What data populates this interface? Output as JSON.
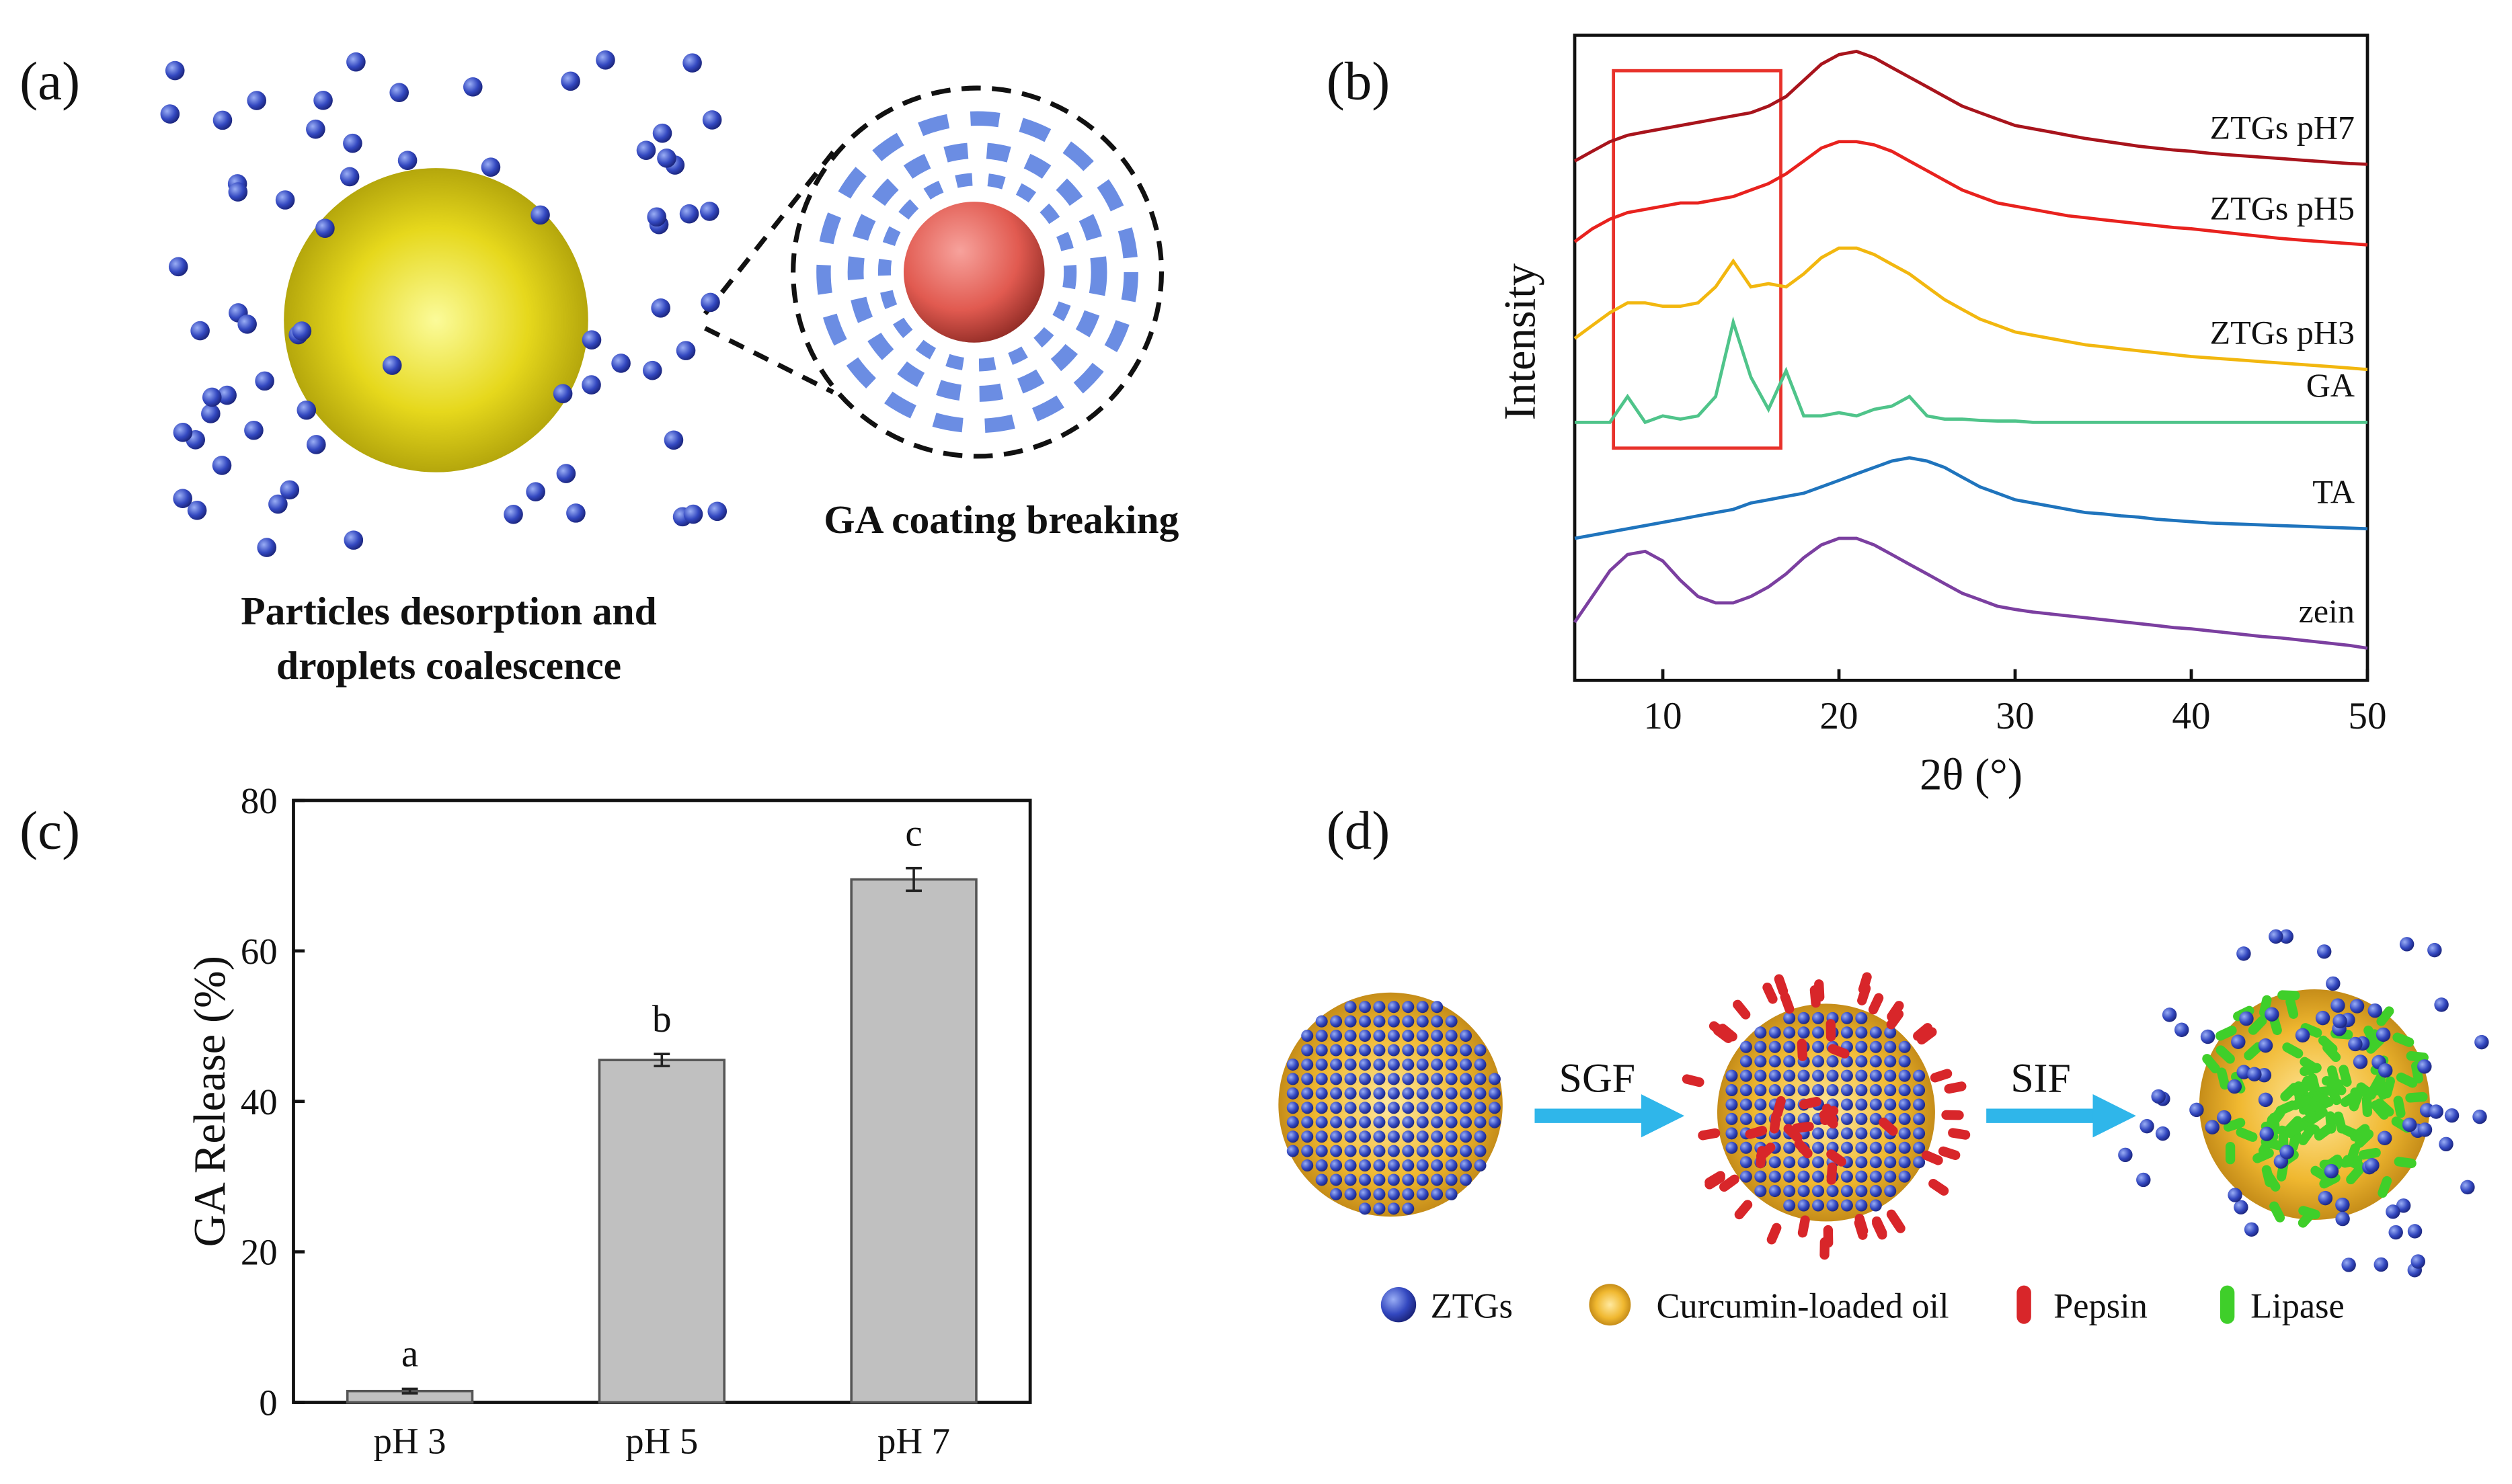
{
  "panel_labels": [
    "(a)",
    "(b)",
    "(c)",
    "(d)"
  ],
  "panel_a": {
    "left_caption": [
      "Particles desorption and",
      "droplets coalescence"
    ],
    "right_caption": "GA coating breaking"
  },
  "panel_d": {
    "steps": [
      "SGF",
      "SIF"
    ],
    "legend": [
      "ZTGs",
      "Curcumin-loaded oil",
      "Pepsin",
      "Lipase"
    ]
  },
  "chart_data": [
    {
      "type": "line",
      "xlabel": "2θ (°)",
      "ylabel": "Intensity",
      "xlim": [
        5,
        50
      ],
      "xticks": [
        10,
        20,
        30,
        40,
        50
      ],
      "ylim": [
        0,
        100
      ],
      "x": [
        5,
        6,
        7,
        8,
        9,
        10,
        11,
        12,
        13,
        14,
        15,
        16,
        17,
        18,
        19,
        20,
        21,
        22,
        23,
        24,
        25,
        26,
        27,
        28,
        29,
        30,
        31,
        32,
        33,
        34,
        35,
        36,
        37,
        38,
        39,
        40,
        41,
        42,
        43,
        44,
        45,
        46,
        47,
        48,
        49,
        50
      ],
      "highlight_box": {
        "x": [
          7.2,
          16.7
        ],
        "y": [
          36,
          94.5
        ],
        "color": "#e8322b"
      },
      "series": [
        {
          "name": "ZTGs pH7",
          "color": "#a8141c",
          "values": [
            80.5,
            82,
            83.5,
            84.5,
            85,
            85.5,
            86,
            86.5,
            87,
            87.5,
            88,
            89,
            90.5,
            93,
            95.5,
            97,
            97.5,
            96.5,
            95,
            93.5,
            92,
            90.5,
            89,
            88,
            87,
            86,
            85.5,
            85,
            84.5,
            84,
            83.6,
            83.2,
            82.8,
            82.5,
            82.2,
            82,
            81.7,
            81.5,
            81.3,
            81.1,
            80.9,
            80.7,
            80.5,
            80.3,
            80.1,
            80
          ]
        },
        {
          "name": "ZTGs pH5",
          "color": "#e8221e",
          "values": [
            68,
            70,
            71.5,
            72.5,
            73,
            73.5,
            74,
            74,
            74.5,
            75,
            76,
            77,
            78.5,
            80.5,
            82.5,
            83.5,
            83.5,
            83,
            82,
            80.5,
            79,
            77.5,
            76,
            75,
            74,
            73.5,
            73,
            72.5,
            72,
            71.7,
            71.4,
            71.1,
            70.8,
            70.5,
            70.2,
            70,
            69.7,
            69.4,
            69.1,
            68.8,
            68.5,
            68.3,
            68.1,
            67.9,
            67.7,
            67.5
          ]
        },
        {
          "name": "ZTGs pH3",
          "color": "#f2b70f",
          "values": [
            53,
            55,
            57,
            58.5,
            58.5,
            58,
            58,
            58.5,
            61,
            65,
            61,
            61.5,
            61,
            63,
            65.5,
            67,
            67,
            66,
            64.5,
            63,
            61,
            59,
            57.5,
            56,
            55,
            54,
            53.5,
            53,
            52.5,
            52,
            51.7,
            51.4,
            51.1,
            50.8,
            50.5,
            50.2,
            50,
            49.8,
            49.6,
            49.4,
            49.2,
            49,
            48.8,
            48.6,
            48.4,
            48.2
          ]
        },
        {
          "name": "GA",
          "color": "#4fc48a",
          "values": [
            40,
            40,
            40,
            44,
            40,
            41,
            40.5,
            41,
            44,
            55.5,
            47,
            42,
            48,
            41,
            41,
            41.5,
            41,
            42,
            42.5,
            44,
            41,
            40.5,
            40.5,
            40.3,
            40.2,
            40.2,
            40,
            40,
            40,
            40,
            40,
            40,
            40,
            40,
            40,
            40,
            40,
            40,
            40,
            40,
            40,
            40,
            40,
            40,
            40,
            40
          ]
        },
        {
          "name": "TA",
          "color": "#1f74bd",
          "values": [
            22,
            22.5,
            23,
            23.5,
            24,
            24.5,
            25,
            25.5,
            26,
            26.5,
            27.5,
            28,
            28.5,
            29,
            30,
            31,
            32,
            33,
            34,
            34.5,
            34,
            33,
            31.5,
            30,
            29,
            28,
            27.5,
            27,
            26.5,
            26,
            25.8,
            25.5,
            25.3,
            25,
            24.8,
            24.6,
            24.4,
            24.3,
            24.2,
            24.1,
            24,
            23.9,
            23.8,
            23.7,
            23.6,
            23.5
          ]
        },
        {
          "name": "zein",
          "color": "#7b3fa0",
          "values": [
            9,
            13,
            17,
            19.5,
            20,
            18.5,
            15.5,
            13,
            12,
            12,
            13,
            14.5,
            16.5,
            19,
            21,
            22,
            22,
            21,
            19.5,
            18,
            16.5,
            15,
            13.5,
            12.5,
            11.5,
            11,
            10.6,
            10.3,
            10,
            9.7,
            9.4,
            9.1,
            8.8,
            8.5,
            8.2,
            8,
            7.7,
            7.4,
            7.1,
            6.8,
            6.6,
            6.3,
            6,
            5.7,
            5.4,
            5
          ]
        }
      ]
    },
    {
      "type": "bar",
      "ylabel": "GA Release (%)",
      "categories": [
        "pH 3",
        "pH 5",
        "pH 7"
      ],
      "values": [
        1.5,
        45.5,
        69.5
      ],
      "errors": [
        0.3,
        0.8,
        1.5
      ],
      "annotations": [
        "a",
        "b",
        "c"
      ],
      "color": "#c0c0c0",
      "ylim": [
        0,
        80
      ],
      "yticks": [
        0,
        20,
        40,
        60,
        80
      ]
    }
  ]
}
